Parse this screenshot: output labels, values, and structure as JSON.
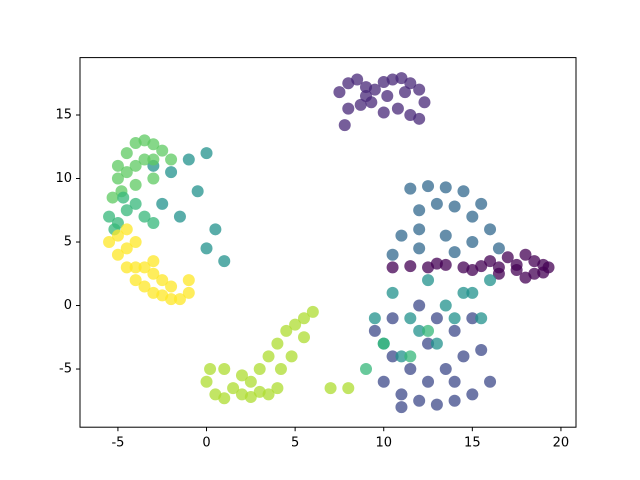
{
  "chart_data": {
    "type": "scatter",
    "xlim": [
      -7.14,
      20.85
    ],
    "ylim": [
      -9.58,
      19.52
    ],
    "xticks": [
      -5,
      0,
      5,
      10,
      15,
      20
    ],
    "yticks": [
      -5,
      0,
      5,
      10,
      15
    ],
    "series": [
      {
        "color": "#440154",
        "x": [
          10.5,
          11.5,
          12.5,
          13.5,
          14.5,
          15.5,
          16,
          16.5,
          17,
          17.5,
          18,
          18,
          18.5,
          18.5,
          19,
          19,
          19.3,
          17.5,
          16.5,
          15,
          13
        ],
        "y": [
          3,
          3.1,
          3,
          3.2,
          3,
          3.1,
          3.5,
          2.5,
          3.8,
          2.8,
          4,
          2.2,
          3.5,
          2.5,
          3.2,
          2.6,
          3,
          3.2,
          3,
          2.8,
          3.3
        ]
      },
      {
        "color": "#482878",
        "x": [
          7.5,
          8,
          8.5,
          9,
          9.5,
          10,
          10.5,
          11,
          11.5,
          12,
          12.3,
          8,
          8.7,
          9.3,
          10,
          10.8,
          11.5,
          12,
          7.8,
          9,
          10.2,
          11.2
        ],
        "y": [
          16.8,
          17.5,
          17.8,
          17.2,
          17,
          17.6,
          17.8,
          17.9,
          17.5,
          17,
          16,
          15.5,
          15.8,
          16,
          15.2,
          15.5,
          15,
          14.7,
          14.2,
          16.5,
          16.5,
          16.8
        ]
      },
      {
        "color": "#3e4a89",
        "x": [
          10,
          11,
          12,
          13,
          14,
          15,
          16,
          10.5,
          11.5,
          12.5,
          13.5,
          14.5,
          15.5,
          9.5,
          10.5,
          12,
          13,
          14,
          15,
          11,
          12.5,
          14
        ],
        "y": [
          -6,
          -7,
          -7.5,
          -7.8,
          -7.5,
          -7,
          -6,
          -4,
          -5,
          -3,
          -5,
          -4,
          -3.5,
          -2,
          -1,
          0,
          -1,
          -2,
          -1,
          -8,
          -6,
          -6
        ]
      },
      {
        "color": "#31688e",
        "x": [
          11.5,
          12.5,
          13.5,
          14.5,
          15.5,
          12,
          13,
          14,
          15,
          16,
          11,
          12,
          13.5,
          15,
          16.5,
          10.5,
          12,
          14
        ],
        "y": [
          9.2,
          9.4,
          9.3,
          9,
          8,
          7.5,
          8,
          7.8,
          7,
          6,
          5.5,
          6,
          5.5,
          5,
          4.5,
          4,
          4.5,
          4.2
        ]
      },
      {
        "color": "#21918c",
        "x": [
          9.5,
          10.5,
          11.5,
          12.5,
          13.5,
          14.5,
          15.5,
          10,
          11,
          12,
          13,
          14,
          15,
          16,
          -3,
          -2,
          -1,
          0,
          -0.5,
          0.5,
          1,
          -1.5,
          -2.5,
          0
        ],
        "y": [
          -1,
          1,
          -1,
          2,
          0,
          1,
          -1,
          -3,
          -4,
          -2,
          -3,
          -1,
          1,
          2,
          11,
          10.5,
          11.5,
          12,
          9,
          6,
          3.5,
          7,
          8,
          4.5
        ]
      },
      {
        "color": "#5ec962",
        "x": [
          -5,
          -4.5,
          -4,
          -3.5,
          -3,
          -2.5,
          -5,
          -4.5,
          -4,
          -3.5,
          -3,
          -2,
          -5.3,
          -4.8,
          -4,
          -3
        ],
        "y": [
          11,
          12,
          12.8,
          13,
          12.7,
          12.2,
          10,
          10.5,
          11,
          11.5,
          11.5,
          11.5,
          8.5,
          9,
          9.5,
          10
        ]
      },
      {
        "color": "#35b779",
        "x": [
          -5.5,
          -5,
          -4.5,
          -4,
          -5.2,
          -4.7,
          -3.5,
          -3,
          9,
          10,
          11.5,
          12.5
        ],
        "y": [
          7,
          6.5,
          7.5,
          8,
          6,
          8.5,
          7,
          6.5,
          -5,
          -3,
          -4,
          -2
        ]
      },
      {
        "color": "#addc30",
        "x": [
          0,
          0.5,
          1,
          1.5,
          2,
          2.5,
          3,
          3.5,
          4,
          0.2,
          1,
          2,
          3,
          2.5,
          3.5,
          4,
          4.5,
          5,
          5.5,
          6,
          5.5,
          4.8,
          4.2,
          7,
          8
        ],
        "y": [
          -6,
          -7,
          -7.3,
          -6.5,
          -7,
          -7.2,
          -6.8,
          -7,
          -6.5,
          -5,
          -5,
          -5.5,
          -5,
          -6,
          -4,
          -3,
          -2,
          -1.5,
          -1,
          -0.5,
          -2.5,
          -4,
          -5,
          -6.5,
          -6.5
        ]
      },
      {
        "color": "#fde725",
        "x": [
          -5.5,
          -5,
          -4.5,
          -4,
          -3.5,
          -3,
          -2.5,
          -2,
          -1.5,
          -1,
          -5,
          -4.5,
          -4,
          -3.5,
          -3,
          -2.5,
          -4.5,
          -4,
          -3,
          -2,
          -1
        ],
        "y": [
          5,
          4,
          3,
          2,
          1.5,
          1,
          0.8,
          0.5,
          0.5,
          1,
          5.5,
          4.5,
          3,
          3,
          2.5,
          2,
          6,
          5,
          3.5,
          1.5,
          2
        ]
      }
    ]
  }
}
